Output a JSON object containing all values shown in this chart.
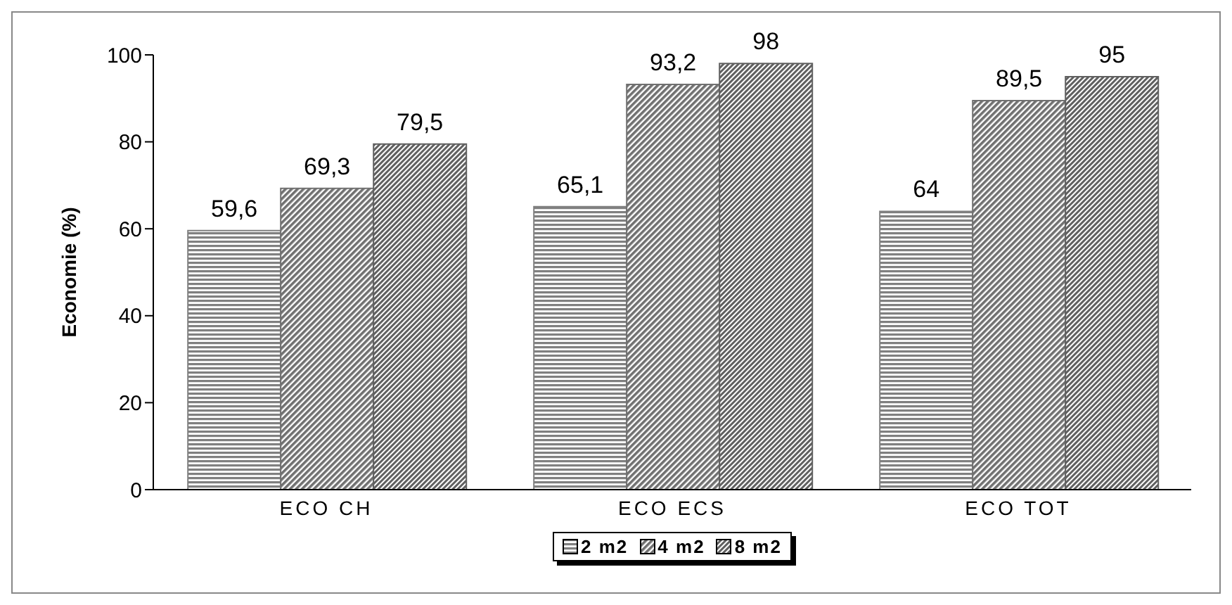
{
  "chart_data": {
    "type": "bar",
    "ylabel": "Economie (%)",
    "categories": [
      "ECO CH",
      "ECO ECS",
      "ECO TOT"
    ],
    "series": [
      {
        "name": "2 m2",
        "color": "#808080",
        "values": [
          59.6,
          65.1,
          64
        ],
        "value_labels": [
          "59,6",
          "65,1",
          "64"
        ]
      },
      {
        "name": "4 m2",
        "color": "#707070",
        "values": [
          69.3,
          93.2,
          89.5
        ],
        "value_labels": [
          "69,3",
          "93,2",
          "89,5"
        ]
      },
      {
        "name": "8 m2",
        "color": "#606060",
        "values": [
          79.5,
          98,
          95
        ],
        "value_labels": [
          "79,5",
          "98",
          "95"
        ]
      }
    ],
    "ylim": [
      0,
      100
    ],
    "yticks": [
      0,
      20,
      40,
      60,
      80,
      100
    ],
    "legend": "bottom"
  }
}
